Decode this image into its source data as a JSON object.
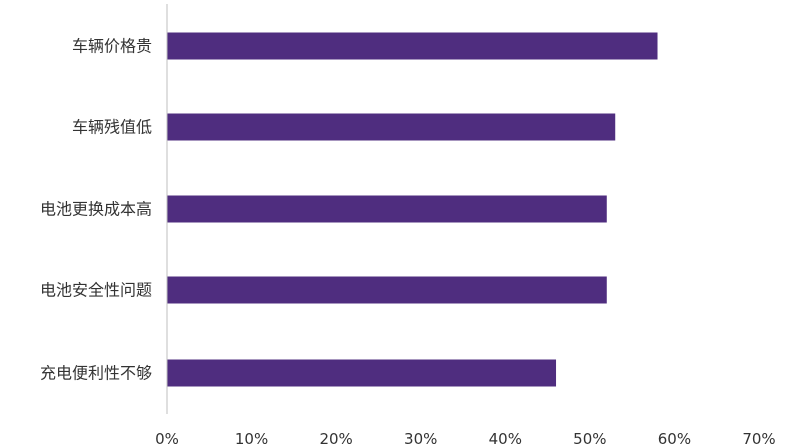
{
  "chart_data": {
    "type": "bar",
    "orientation": "horizontal",
    "categories": [
      "车辆价格贵",
      "车辆残值低",
      "电池更换成本高",
      "电池安全性问题",
      "充电便利性不够"
    ],
    "values": [
      58,
      53,
      52,
      52,
      46
    ],
    "value_unit": "%",
    "title": "",
    "xlabel": "",
    "ylabel": "",
    "xlim": [
      0,
      70
    ],
    "x_ticks": [
      0,
      10,
      20,
      30,
      40,
      50,
      60,
      70
    ],
    "x_tick_labels": [
      "0%",
      "10%",
      "20%",
      "30%",
      "40%",
      "50%",
      "60%",
      "70%"
    ],
    "grid": false,
    "legend": "none",
    "bar_color": "#4F2D7F",
    "axis_color": "#BFBFBF"
  }
}
